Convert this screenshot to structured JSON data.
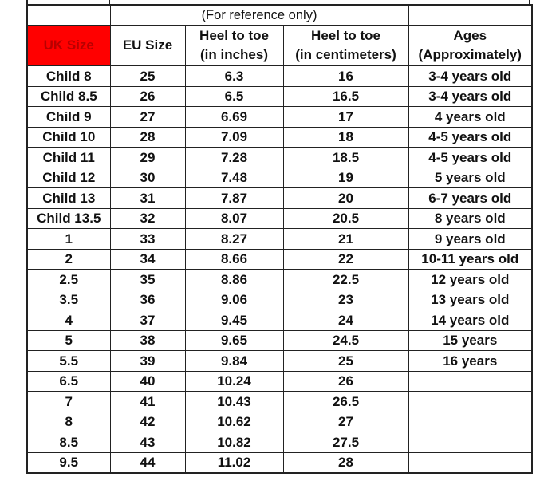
{
  "table": {
    "note": "(For reference only)",
    "headers": {
      "uk": "UK Size",
      "eu": "EU Size",
      "inches_l1": "Heel to toe",
      "inches_l2": "(in inches)",
      "cm_l1": "Heel to toe",
      "cm_l2": "(in centimeters)",
      "ages_l1": "Ages",
      "ages_l2": "(Approximately)"
    },
    "uk_header_color": "#ff0000",
    "rows": [
      [
        "Child 8",
        "25",
        "6.3",
        "16",
        "3-4 years old"
      ],
      [
        "Child 8.5",
        "26",
        "6.5",
        "16.5",
        "3-4 years old"
      ],
      [
        "Child 9",
        "27",
        "6.69",
        "17",
        "4 years old"
      ],
      [
        "Child 10",
        "28",
        "7.09",
        "18",
        "4-5 years old"
      ],
      [
        "Child 11",
        "29",
        "7.28",
        "18.5",
        "4-5 years old"
      ],
      [
        "Child 12",
        "30",
        "7.48",
        "19",
        "5 years old"
      ],
      [
        "Child 13",
        "31",
        "7.87",
        "20",
        "6-7 years old"
      ],
      [
        "Child 13.5",
        "32",
        "8.07",
        "20.5",
        "8 years old"
      ],
      [
        "1",
        "33",
        "8.27",
        "21",
        "9 years old"
      ],
      [
        "2",
        "34",
        "8.66",
        "22",
        "10-11 years old"
      ],
      [
        "2.5",
        "35",
        "8.86",
        "22.5",
        "12 years old"
      ],
      [
        "3.5",
        "36",
        "9.06",
        "23",
        "13 years old"
      ],
      [
        "4",
        "37",
        "9.45",
        "24",
        "14 years old"
      ],
      [
        "5",
        "38",
        "9.65",
        "24.5",
        "15 years"
      ],
      [
        "5.5",
        "39",
        "9.84",
        "25",
        "16 years"
      ],
      [
        "6.5",
        "40",
        "10.24",
        "26",
        ""
      ],
      [
        "7",
        "41",
        "10.43",
        "26.5",
        ""
      ],
      [
        "8",
        "42",
        "10.62",
        "27",
        ""
      ],
      [
        "8.5",
        "43",
        "10.82",
        "27.5",
        ""
      ],
      [
        "9.5",
        "44",
        "11.02",
        "28",
        ""
      ]
    ]
  }
}
